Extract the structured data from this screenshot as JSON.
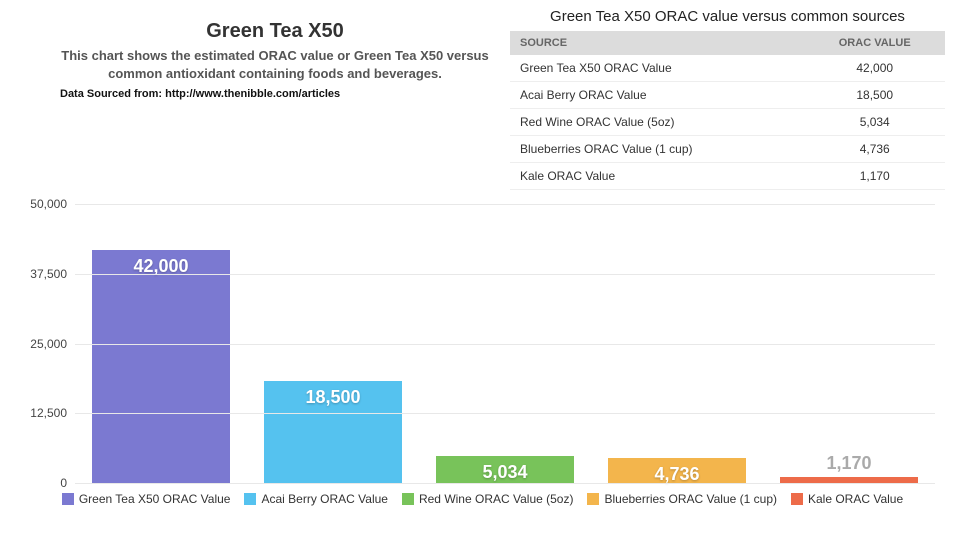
{
  "header": {
    "title": "Green Tea X50",
    "subtitle": "This chart shows the estimated ORAC value or Green Tea X50 versus common antioxidant containing foods and beverages.",
    "source": "Data Sourced from: http://www.thenibble.com/articles"
  },
  "table": {
    "title": "Green Tea X50 ORAC value versus common sources",
    "columns": [
      "SOURCE",
      "ORAC VALUE"
    ],
    "rows": [
      [
        "Green Tea X50 ORAC Value",
        "42,000"
      ],
      [
        "Acai Berry ORAC Value",
        "18,500"
      ],
      [
        "Red Wine ORAC Value (5oz)",
        "5,034"
      ],
      [
        "Blueberries ORAC Value (1 cup)",
        "4,736"
      ],
      [
        "Kale ORAC Value",
        "1,170"
      ]
    ]
  },
  "chart": {
    "type": "bar",
    "ylim": [
      0,
      50000
    ],
    "ytick_step": 12500,
    "ytick_labels": [
      "0",
      "12,500",
      "25,000",
      "37,500",
      "50,000"
    ],
    "background_color": "#ffffff",
    "grid_color": "#e8e8e8",
    "baseline_color": "#bbbbbb",
    "bar_width": 0.8,
    "label_fontsize": 18,
    "label_color_inside": "#ffffff",
    "label_color_outside": "#aaaaaa",
    "axis_fontsize": 12,
    "legend_fontsize": 12,
    "series": [
      {
        "label": "Green Tea X50 ORAC Value",
        "value": 42000,
        "display": "42,000",
        "color": "#7b79d1",
        "label_inside": true
      },
      {
        "label": "Acai Berry ORAC Value",
        "value": 18500,
        "display": "18,500",
        "color": "#55c2ef",
        "label_inside": true
      },
      {
        "label": "Red Wine ORAC Value (5oz)",
        "value": 5034,
        "display": "5,034",
        "color": "#78c35a",
        "label_inside": true
      },
      {
        "label": "Blueberries ORAC Value (1 cup)",
        "value": 4736,
        "display": "4,736",
        "color": "#f3b54c",
        "label_inside": true
      },
      {
        "label": "Kale ORAC Value",
        "value": 1170,
        "display": "1,170",
        "color": "#ed6b49",
        "label_inside": false
      }
    ]
  }
}
